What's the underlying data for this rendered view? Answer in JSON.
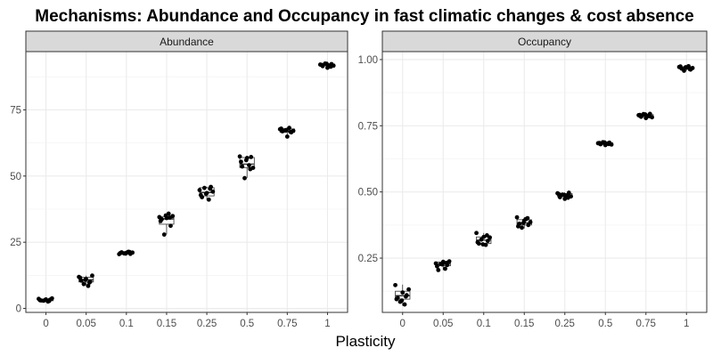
{
  "chart_data": {
    "type": "box+jitter",
    "title": "Mechanisms: Abundance and Occupancy in fast climatic changes & cost absence",
    "xlabel": "Plasticity",
    "categories": [
      "0",
      "0.05",
      "0.1",
      "0.15",
      "0.25",
      "0.5",
      "0.75",
      "1"
    ],
    "grid": true,
    "panels": [
      {
        "strip": "Abundance",
        "ylim": [
          -1.5,
          97
        ],
        "yticks": [
          0,
          25,
          50,
          75
        ],
        "ytick_labels": [
          "0",
          "25",
          "50",
          "75"
        ],
        "boxes": [
          {
            "q1": 2.9,
            "median": 3.1,
            "q3": 3.5,
            "low": 2.6,
            "high": 3.9
          },
          {
            "q1": 10.0,
            "median": 10.8,
            "q3": 11.8,
            "low": 8.5,
            "high": 12.4
          },
          {
            "q1": 20.5,
            "median": 20.9,
            "q3": 21.3,
            "low": 20.2,
            "high": 21.6
          },
          {
            "q1": 31.8,
            "median": 33.8,
            "q3": 34.7,
            "low": 28.0,
            "high": 36.0
          },
          {
            "q1": 42.5,
            "median": 43.8,
            "q3": 45.6,
            "low": 41.0,
            "high": 46.0
          },
          {
            "q1": 53.2,
            "median": 54.5,
            "q3": 57.0,
            "low": 49.3,
            "high": 57.6
          },
          {
            "q1": 66.5,
            "median": 67.0,
            "q3": 67.8,
            "low": 65.5,
            "high": 68.3
          },
          {
            "q1": 91.6,
            "median": 91.9,
            "q3": 92.3,
            "low": 91.2,
            "high": 92.6
          }
        ],
        "points": [
          [
            3.6,
            3.0,
            2.9,
            3.4,
            2.6,
            3.3,
            3.8,
            3.1,
            2.8,
            3.2
          ],
          [
            11.9,
            10.5,
            9.2,
            11.0,
            8.5,
            10.1,
            12.4,
            11.6,
            9.8,
            10.9
          ],
          [
            20.5,
            21.2,
            20.8,
            21.0,
            21.4,
            20.6,
            21.1,
            20.9,
            21.3,
            20.7
          ],
          [
            34.5,
            33.7,
            27.9,
            34.1,
            35.8,
            31.2,
            34.9,
            33.0,
            34.3,
            35.1
          ],
          [
            44.7,
            42.0,
            45.5,
            43.6,
            41.1,
            45.9,
            44.1,
            42.8,
            45.2,
            43.3
          ],
          [
            57.4,
            53.6,
            49.2,
            56.8,
            54.1,
            57.2,
            53.1,
            55.4,
            52.6,
            56.0
          ],
          [
            67.7,
            66.9,
            67.3,
            64.9,
            68.2,
            66.5,
            67.1,
            67.9,
            66.7,
            67.4
          ],
          [
            92.1,
            91.5,
            92.5,
            90.9,
            91.8,
            92.3,
            91.7,
            92.0,
            91.3,
            92.4
          ]
        ]
      },
      {
        "strip": "Occupancy",
        "ylim": [
          0.045,
          1.03
        ],
        "yticks": [
          0.25,
          0.5,
          0.75,
          1.0
        ],
        "ytick_labels": [
          "0.25",
          "0.50",
          "0.75",
          "1.00"
        ],
        "boxes": [
          {
            "q1": 0.095,
            "median": 0.108,
            "q3": 0.125,
            "low": 0.07,
            "high": 0.15
          },
          {
            "q1": 0.221,
            "median": 0.228,
            "q3": 0.235,
            "low": 0.205,
            "high": 0.24
          },
          {
            "q1": 0.305,
            "median": 0.318,
            "q3": 0.33,
            "low": 0.295,
            "high": 0.345
          },
          {
            "q1": 0.375,
            "median": 0.383,
            "q3": 0.395,
            "low": 0.362,
            "high": 0.405
          },
          {
            "q1": 0.482,
            "median": 0.488,
            "q3": 0.494,
            "low": 0.472,
            "high": 0.498
          },
          {
            "q1": 0.678,
            "median": 0.682,
            "q3": 0.686,
            "low": 0.673,
            "high": 0.689
          },
          {
            "q1": 0.782,
            "median": 0.787,
            "q3": 0.792,
            "low": 0.776,
            "high": 0.796
          },
          {
            "q1": 0.965,
            "median": 0.969,
            "q3": 0.973,
            "low": 0.958,
            "high": 0.977
          }
        ],
        "points": [
          [
            0.148,
            0.1,
            0.085,
            0.12,
            0.075,
            0.11,
            0.132,
            0.095,
            0.105,
            0.09
          ],
          [
            0.23,
            0.205,
            0.228,
            0.236,
            0.21,
            0.224,
            0.238,
            0.219,
            0.232,
            0.226
          ],
          [
            0.345,
            0.305,
            0.32,
            0.33,
            0.3,
            0.315,
            0.328,
            0.31,
            0.336,
            0.302
          ],
          [
            0.404,
            0.38,
            0.365,
            0.392,
            0.398,
            0.375,
            0.386,
            0.37,
            0.401,
            0.383
          ],
          [
            0.495,
            0.48,
            0.49,
            0.474,
            0.486,
            0.497,
            0.483,
            0.492,
            0.478,
            0.489
          ],
          [
            0.684,
            0.68,
            0.688,
            0.677,
            0.683,
            0.686,
            0.679,
            0.685,
            0.681,
            0.687
          ],
          [
            0.79,
            0.784,
            0.794,
            0.779,
            0.788,
            0.795,
            0.782,
            0.791,
            0.786,
            0.793
          ],
          [
            0.972,
            0.966,
            0.958,
            0.97,
            0.975,
            0.962,
            0.968,
            0.974,
            0.964,
            0.971
          ]
        ]
      }
    ]
  },
  "style": {
    "panel_border": "#333333",
    "strip_fill": "#d9d9d9",
    "grid_major": "#ebebeb",
    "grid_minor": "#f4f4f4",
    "point_color": "#000000",
    "box_color": "#333333"
  }
}
